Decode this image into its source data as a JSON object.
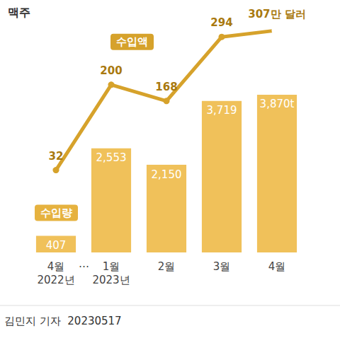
{
  "chart_data": {
    "type": "bar",
    "title": "맥주",
    "footer": "김민지 기자  20230517",
    "axis_break": "…",
    "categories": [
      "4월\n2022년",
      "1월\n2023년",
      "2월",
      "3월",
      "4월"
    ],
    "series": [
      {
        "name": "수입량",
        "type": "bar",
        "color": "#f0c15a",
        "values": [
          407,
          2553,
          2150,
          3719,
          3870
        ],
        "value_labels": [
          "407",
          "2,553",
          "2,150",
          "3,719",
          "3,870t"
        ]
      },
      {
        "name": "수입액",
        "type": "line",
        "axis": "y2",
        "color": "#d6a22b",
        "marker": "circle",
        "values": [
          32,
          200,
          168,
          294,
          307
        ],
        "value_labels": [
          "32",
          "200",
          "168",
          "294",
          "307만 달러"
        ]
      }
    ],
    "ylim": [
      0,
      5500
    ],
    "y2lim": [
      -130,
      311
    ],
    "data_labels": true,
    "tick_labels": "x",
    "grid": false
  }
}
